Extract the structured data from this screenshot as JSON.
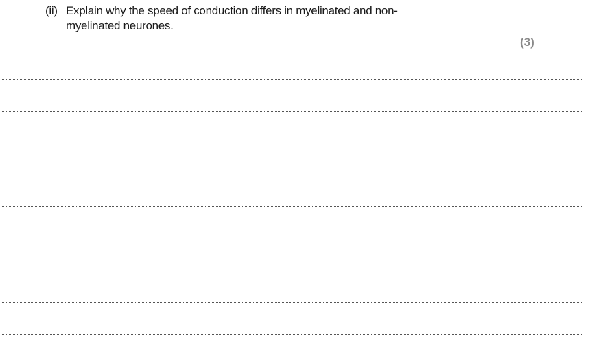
{
  "question": {
    "number": "(ii)",
    "text": "Explain why the speed of conduction differs in myelinated and non-myelinated neurones.",
    "marks": "(3)"
  },
  "answer_lines": 9
}
